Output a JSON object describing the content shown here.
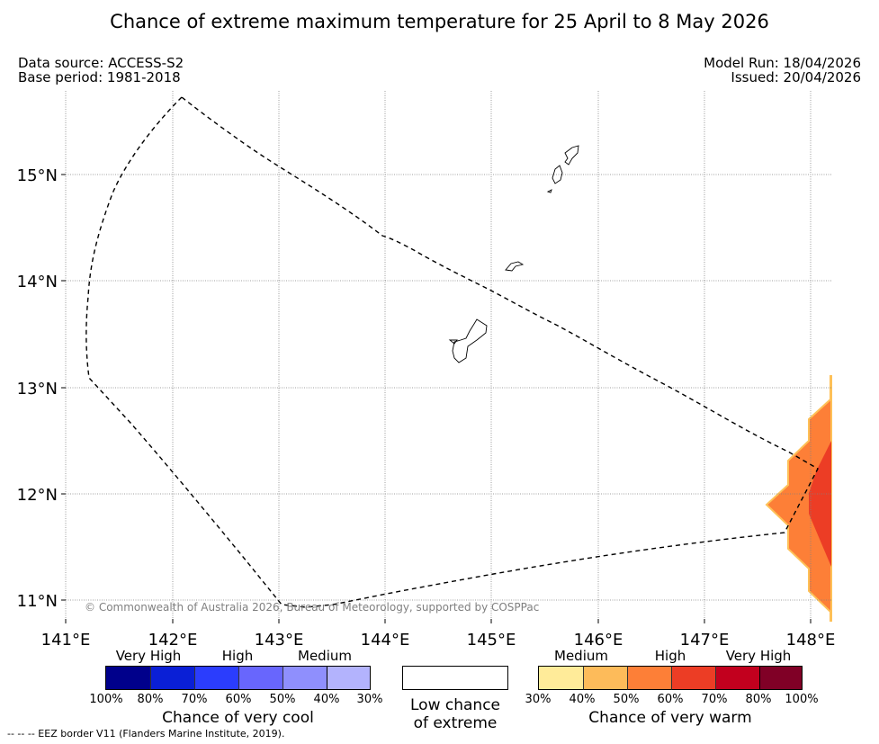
{
  "title": "Chance of extreme maximum temperature for 25 April to 8 May 2026",
  "meta": {
    "data_source": "Data source: ACCESS-S2",
    "base_period": "Base period: 1981-2018",
    "model_run": "Model Run: 18/04/2026",
    "issued": "Issued: 20/04/2026"
  },
  "map": {
    "lon_labels": [
      "141°E",
      "142°E",
      "143°E",
      "144°E",
      "145°E",
      "146°E",
      "147°E",
      "148°E"
    ],
    "lat_labels": [
      "15°N",
      "14°N",
      "13°N",
      "12°N",
      "11°N"
    ],
    "copyright": "© Commonwealth of Australia 2026, Bureau of Meteorology, supported by COSPPac",
    "colors": {
      "eez_line": "#000000",
      "coast": "#000000",
      "warm_50_60": "#fd7f37",
      "warm_60_70": "#ec3d25",
      "warm_edge": "#fec158",
      "grid": "#808080"
    }
  },
  "legend": {
    "cool": {
      "categories": [
        "Very High",
        "High",
        "Medium"
      ],
      "ticks": [
        "100%",
        "80%",
        "70%",
        "60%",
        "50%",
        "40%",
        "30%"
      ],
      "colors": [
        "#00008b",
        "#0a1fd6",
        "#2b3dfd",
        "#6866fd",
        "#8f8ffd",
        "#b3b3fd"
      ],
      "title": "Chance of very cool"
    },
    "neutral": {
      "title_line1": "Low chance",
      "title_line2": "of extreme",
      "color": "#ffffff"
    },
    "warm": {
      "categories": [
        "Medium",
        "High",
        "Very High"
      ],
      "ticks": [
        "30%",
        "40%",
        "50%",
        "60%",
        "70%",
        "80%",
        "100%"
      ],
      "colors": [
        "#ffeb99",
        "#fdbb5a",
        "#fd7f37",
        "#ec3d25",
        "#c2001e",
        "#800026"
      ],
      "title": "Chance of very warm"
    }
  },
  "footnote": "--  --  -- EEZ border V11 (Flanders Marine Institute, 2019)."
}
